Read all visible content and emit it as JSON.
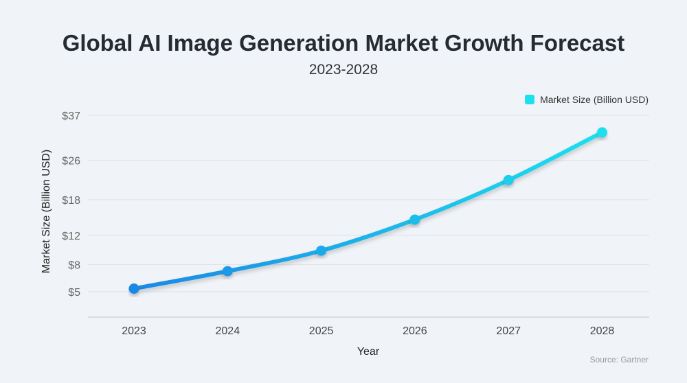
{
  "chart_data": {
    "type": "line",
    "title": "Global AI Image Generation Market Growth Forecast",
    "subtitle": "2023-2028",
    "xlabel": "Year",
    "ylabel": "Market Size (Billion USD)",
    "categories": [
      "2023",
      "2024",
      "2025",
      "2026",
      "2027",
      "2028"
    ],
    "series": [
      {
        "name": "Market Size (Billion USD)",
        "values": [
          5.3,
          7.2,
          9.8,
          14.5,
          21.8,
          32.6
        ]
      }
    ],
    "y_ticks": [
      5,
      8,
      12,
      18,
      26,
      37
    ],
    "y_tick_labels": [
      "$5",
      "$8",
      "$12",
      "$18",
      "$26",
      "$37"
    ],
    "y_scale": "sqrt",
    "grid": true,
    "legend_position": "top-right",
    "source": "Source: Gartner",
    "colors": {
      "start": "#1e88e5",
      "end": "#1de0ee"
    }
  }
}
